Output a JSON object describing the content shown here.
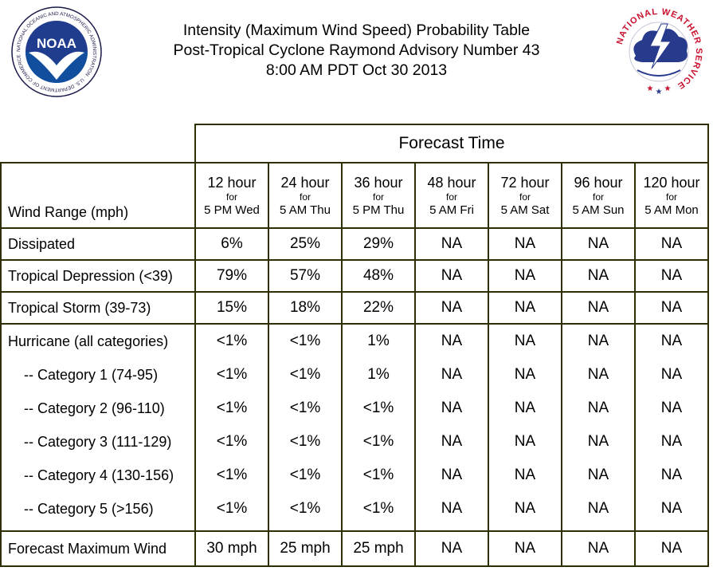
{
  "header": {
    "line1": "Intensity (Maximum Wind Speed) Probability Table",
    "line2": "Post-Tropical Cyclone Raymond Advisory Number 43",
    "line3": "8:00 AM PDT Oct 30 2013"
  },
  "logos": {
    "noaa": {
      "icon": "noaa-logo",
      "text": "NOAA",
      "ring": "NATIONAL OCEANIC AND ATMOSPHERIC ADMINISTRATION · U.S. DEPARTMENT OF COMMERCE"
    },
    "nws": {
      "icon": "nws-logo",
      "ring": "NATIONAL WEATHER SERVICE"
    }
  },
  "table": {
    "forecast_time_label": "Forecast Time",
    "row_header_label": "Wind Range (mph)",
    "columns": [
      {
        "hour": "12 hour",
        "for": "for",
        "when": "5 PM Wed"
      },
      {
        "hour": "24 hour",
        "for": "for",
        "when": "5 AM Thu"
      },
      {
        "hour": "36 hour",
        "for": "for",
        "when": "5 PM Thu"
      },
      {
        "hour": "48 hour",
        "for": "for",
        "when": "5 AM Fri"
      },
      {
        "hour": "72 hour",
        "for": "for",
        "when": "5 AM Sat"
      },
      {
        "hour": "96 hour",
        "for": "for",
        "when": "5 AM Sun"
      },
      {
        "hour": "120 hour",
        "for": "for",
        "when": "5 AM Mon"
      }
    ],
    "rows": [
      {
        "label": "Dissipated",
        "values": [
          "6%",
          "25%",
          "29%",
          "NA",
          "NA",
          "NA",
          "NA"
        ]
      },
      {
        "label": "Tropical Depression (<39)",
        "values": [
          "79%",
          "57%",
          "48%",
          "NA",
          "NA",
          "NA",
          "NA"
        ]
      },
      {
        "label": "Tropical Storm (39-73)",
        "values": [
          "15%",
          "18%",
          "22%",
          "NA",
          "NA",
          "NA",
          "NA"
        ]
      }
    ],
    "hurricane_group": [
      {
        "label": "Hurricane (all categories)",
        "values": [
          "<1%",
          "<1%",
          "1%",
          "NA",
          "NA",
          "NA",
          "NA"
        ]
      },
      {
        "label": "-- Category 1 (74-95)",
        "values": [
          "<1%",
          "<1%",
          "1%",
          "NA",
          "NA",
          "NA",
          "NA"
        ]
      },
      {
        "label": "-- Category 2 (96-110)",
        "values": [
          "<1%",
          "<1%",
          "<1%",
          "NA",
          "NA",
          "NA",
          "NA"
        ]
      },
      {
        "label": "-- Category 3 (111-129)",
        "values": [
          "<1%",
          "<1%",
          "<1%",
          "NA",
          "NA",
          "NA",
          "NA"
        ]
      },
      {
        "label": "-- Category 4 (130-156)",
        "values": [
          "<1%",
          "<1%",
          "<1%",
          "NA",
          "NA",
          "NA",
          "NA"
        ]
      },
      {
        "label": "-- Category 5 (>156)",
        "values": [
          "<1%",
          "<1%",
          "<1%",
          "NA",
          "NA",
          "NA",
          "NA"
        ]
      }
    ],
    "max_wind": {
      "label": "Forecast Maximum Wind",
      "values": [
        "30 mph",
        "25 mph",
        "25 mph",
        "NA",
        "NA",
        "NA",
        "NA"
      ]
    },
    "border_color": "#2e2e00"
  }
}
